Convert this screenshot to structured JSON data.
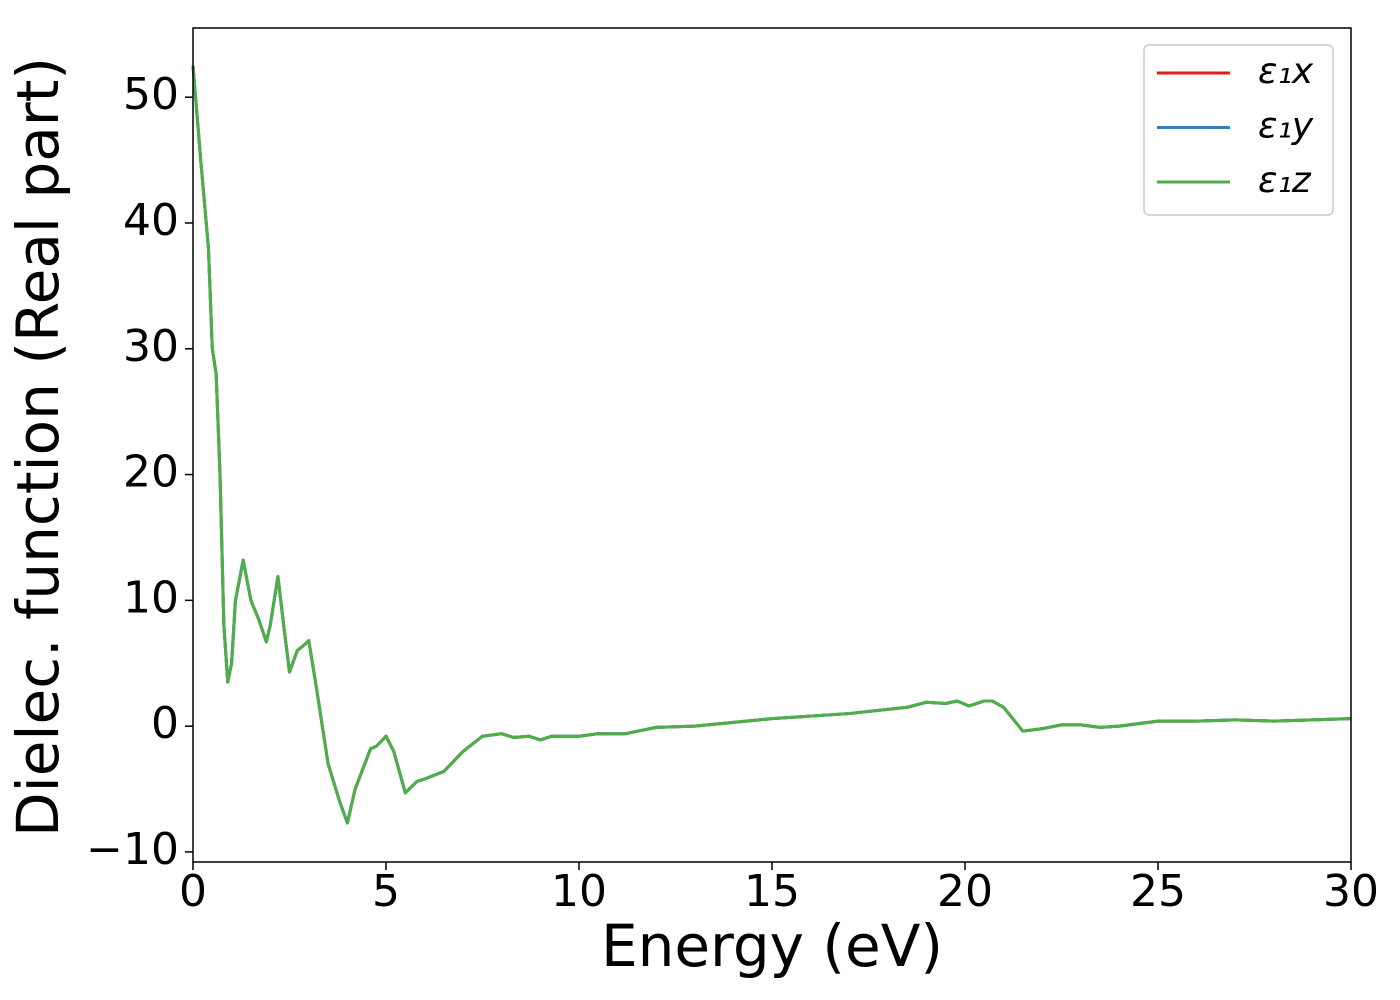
{
  "chart_data": {
    "type": "line",
    "xlabel": "Energy (eV)",
    "ylabel": "Dielec. function (Real part)",
    "x": [
      0,
      0.2,
      0.4,
      0.5,
      0.6,
      0.7,
      0.8,
      0.9,
      1.0,
      1.1,
      1.3,
      1.5,
      1.7,
      1.9,
      2.0,
      2.2,
      2.35,
      2.5,
      2.7,
      2.9,
      3.0,
      3.2,
      3.5,
      3.8,
      4.0,
      4.2,
      4.6,
      4.75,
      5.0,
      5.2,
      5.5,
      5.8,
      6.0,
      6.5,
      7.0,
      7.5,
      8.0,
      8.3,
      8.7,
      9.0,
      9.3,
      10.0,
      10.5,
      11.2,
      12.0,
      13,
      15,
      17,
      18.5,
      19,
      19.5,
      19.8,
      20.1,
      20.5,
      20.7,
      21.0,
      21.5,
      22,
      22.5,
      23,
      23.5,
      24,
      25,
      26,
      27,
      28,
      29,
      30
    ],
    "series": [
      {
        "name": "ε₁x",
        "color": "#e41a1c",
        "values": [
          52.5,
          45,
          38,
          30,
          28,
          20,
          8,
          3.5,
          5,
          10,
          13.2,
          10,
          8.5,
          6.7,
          8,
          11.9,
          8,
          4.3,
          6,
          6.5,
          6.8,
          3,
          -3,
          -6,
          -7.7,
          -5,
          -1.8,
          -1.6,
          -0.8,
          -2,
          -5.3,
          -4.4,
          -4.2,
          -3.6,
          -2,
          -0.8,
          -0.6,
          -0.9,
          -0.8,
          -1.1,
          -0.8,
          -0.8,
          -0.6,
          -0.6,
          -0.1,
          0,
          0.6,
          1,
          1.5,
          1.9,
          1.8,
          2,
          1.6,
          2,
          2,
          1.5,
          -0.4,
          -0.2,
          0.1,
          0.1,
          -0.1,
          0,
          0.4,
          0.4,
          0.5,
          0.4,
          0.5,
          0.6
        ]
      },
      {
        "name": "ε₁y",
        "color": "#377eb8",
        "values": [
          52.5,
          45,
          38,
          30,
          28,
          20,
          8,
          3.5,
          5,
          10,
          13.2,
          10,
          8.5,
          6.7,
          8,
          11.9,
          8,
          4.3,
          6,
          6.5,
          6.8,
          3,
          -3,
          -6,
          -7.7,
          -5,
          -1.8,
          -1.6,
          -0.8,
          -2,
          -5.3,
          -4.4,
          -4.2,
          -3.6,
          -2,
          -0.8,
          -0.6,
          -0.9,
          -0.8,
          -1.1,
          -0.8,
          -0.8,
          -0.6,
          -0.6,
          -0.1,
          0,
          0.6,
          1,
          1.5,
          1.9,
          1.8,
          2,
          1.6,
          2,
          2,
          1.5,
          -0.4,
          -0.2,
          0.1,
          0.1,
          -0.1,
          0,
          0.4,
          0.4,
          0.5,
          0.4,
          0.5,
          0.6
        ]
      },
      {
        "name": "ε₁z",
        "color": "#4daf4a",
        "values": [
          52.5,
          45,
          38,
          30,
          28,
          20,
          8,
          3.5,
          5,
          10,
          13.2,
          10,
          8.5,
          6.7,
          8,
          11.9,
          8,
          4.3,
          6,
          6.5,
          6.8,
          3,
          -3,
          -6,
          -7.7,
          -5,
          -1.8,
          -1.6,
          -0.8,
          -2,
          -5.3,
          -4.4,
          -4.2,
          -3.6,
          -2,
          -0.8,
          -0.6,
          -0.9,
          -0.8,
          -1.1,
          -0.8,
          -0.8,
          -0.6,
          -0.6,
          -0.1,
          0,
          0.6,
          1,
          1.5,
          1.9,
          1.8,
          2,
          1.6,
          2,
          2,
          1.5,
          -0.4,
          -0.2,
          0.1,
          0.1,
          -0.1,
          0,
          0.4,
          0.4,
          0.5,
          0.4,
          0.5,
          0.6
        ]
      }
    ],
    "xlim": [
      0,
      30
    ],
    "xticks": [
      0,
      5,
      10,
      15,
      20,
      25,
      30
    ],
    "ylim": [
      -10.8,
      55.5
    ],
    "yticks": [
      {
        "value": -10,
        "label": "−10"
      },
      0,
      10,
      20,
      30,
      40,
      50
    ],
    "grid": false,
    "legend": "upper right"
  }
}
